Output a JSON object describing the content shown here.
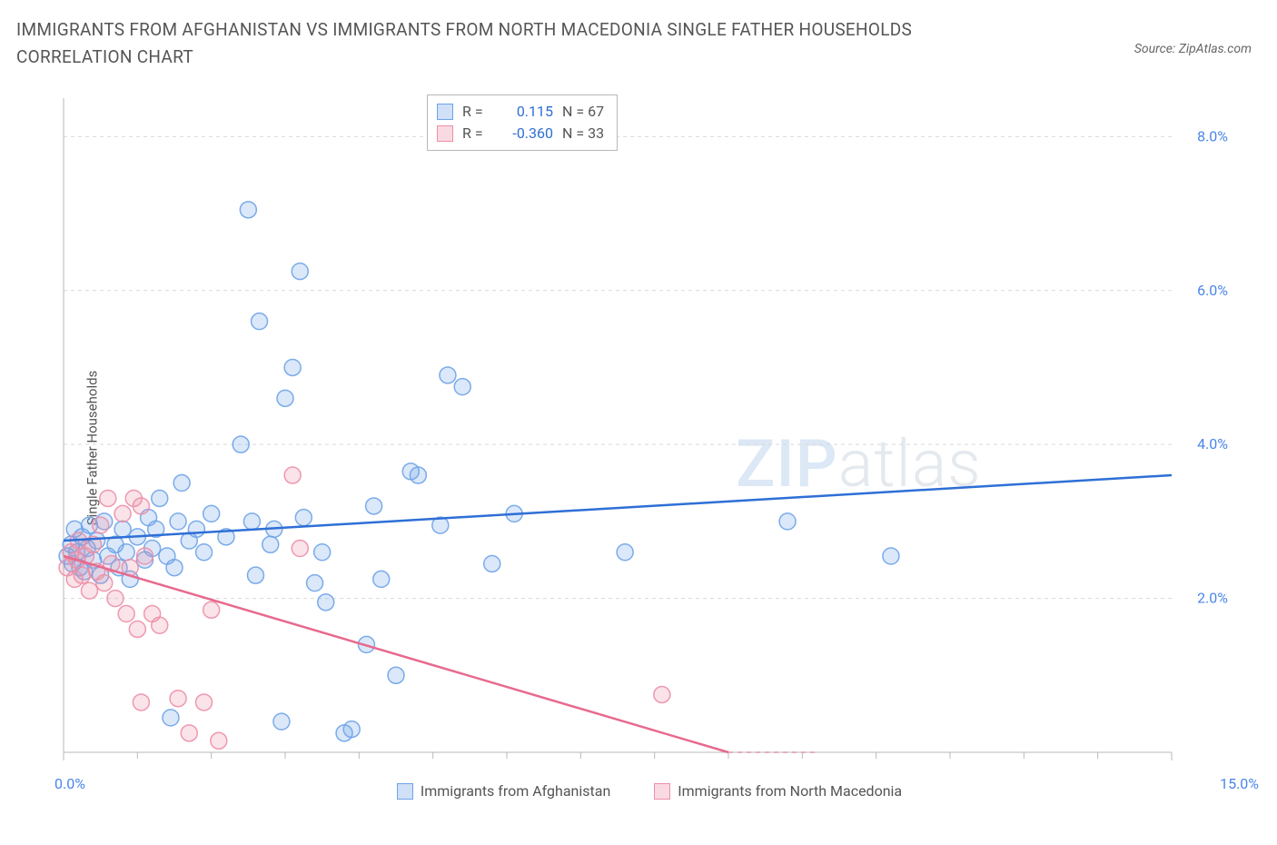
{
  "title": "IMMIGRANTS FROM AFGHANISTAN VS IMMIGRANTS FROM NORTH MACEDONIA SINGLE FATHER HOUSEHOLDS CORRELATION CHART",
  "source": "Source: ZipAtlas.com",
  "y_axis_label": "Single Father Households",
  "watermark_a": "ZIP",
  "watermark_b": "atlas",
  "chart": {
    "type": "scatter",
    "xlim": [
      0,
      15
    ],
    "ylim": [
      0,
      8.5
    ],
    "x_end_ticks": [
      {
        "v": 0.0,
        "label": "0.0%",
        "color": "#4a86e8"
      },
      {
        "v": 15.0,
        "label": "15.0%",
        "color": "#4a86e8"
      }
    ],
    "x_minor_ticks": [
      1,
      2,
      3,
      4,
      5,
      6,
      7,
      8,
      9,
      10,
      11,
      12,
      13,
      14
    ],
    "y_ticks": [
      {
        "v": 2.0,
        "label": "2.0%"
      },
      {
        "v": 4.0,
        "label": "4.0%"
      },
      {
        "v": 6.0,
        "label": "6.0%"
      },
      {
        "v": 8.0,
        "label": "8.0%"
      }
    ],
    "grid_color": "#d9d9d9",
    "axis_color": "#b8b8b8",
    "background_color": "#ffffff",
    "y_tick_color": "#4a86e8",
    "marker_radius": 9,
    "marker_stroke_opacity": 0.9,
    "marker_fill_opacity": 0.25,
    "series": [
      {
        "name": "Immigrants from Afghanistan",
        "color": "#6ea3e8",
        "line_color": "#2e6fd6",
        "r": "0.115",
        "n": "67",
        "trend": {
          "x0": 0,
          "y0": 2.75,
          "x1": 15,
          "y1": 3.6
        },
        "points": [
          [
            0.05,
            2.55
          ],
          [
            0.1,
            2.7
          ],
          [
            0.12,
            2.45
          ],
          [
            0.15,
            2.9
          ],
          [
            0.18,
            2.6
          ],
          [
            0.22,
            2.4
          ],
          [
            0.25,
            2.8
          ],
          [
            0.28,
            2.35
          ],
          [
            0.32,
            2.65
          ],
          [
            0.35,
            2.95
          ],
          [
            0.4,
            2.5
          ],
          [
            0.45,
            2.75
          ],
          [
            0.5,
            2.3
          ],
          [
            0.55,
            3.0
          ],
          [
            0.6,
            2.55
          ],
          [
            0.7,
            2.7
          ],
          [
            0.75,
            2.4
          ],
          [
            0.8,
            2.9
          ],
          [
            0.85,
            2.6
          ],
          [
            0.9,
            2.25
          ],
          [
            1.0,
            2.8
          ],
          [
            1.1,
            2.5
          ],
          [
            1.15,
            3.05
          ],
          [
            1.2,
            2.65
          ],
          [
            1.25,
            2.9
          ],
          [
            1.3,
            3.3
          ],
          [
            1.4,
            2.55
          ],
          [
            1.5,
            2.4
          ],
          [
            1.55,
            3.0
          ],
          [
            1.6,
            3.5
          ],
          [
            1.7,
            2.75
          ],
          [
            1.8,
            2.9
          ],
          [
            1.9,
            2.6
          ],
          [
            2.0,
            3.1
          ],
          [
            2.2,
            2.8
          ],
          [
            2.4,
            4.0
          ],
          [
            2.5,
            7.05
          ],
          [
            2.55,
            3.0
          ],
          [
            2.6,
            2.3
          ],
          [
            2.65,
            5.6
          ],
          [
            2.8,
            2.7
          ],
          [
            2.85,
            2.9
          ],
          [
            2.95,
            0.4
          ],
          [
            3.0,
            4.6
          ],
          [
            3.1,
            5.0
          ],
          [
            3.2,
            6.25
          ],
          [
            3.25,
            3.05
          ],
          [
            3.4,
            2.2
          ],
          [
            3.5,
            2.6
          ],
          [
            3.55,
            1.95
          ],
          [
            3.8,
            0.25
          ],
          [
            3.9,
            0.3
          ],
          [
            4.1,
            1.4
          ],
          [
            4.2,
            3.2
          ],
          [
            4.3,
            2.25
          ],
          [
            4.5,
            1.0
          ],
          [
            4.7,
            3.65
          ],
          [
            4.8,
            3.6
          ],
          [
            5.1,
            2.95
          ],
          [
            5.2,
            4.9
          ],
          [
            5.4,
            4.75
          ],
          [
            5.8,
            2.45
          ],
          [
            6.1,
            3.1
          ],
          [
            7.6,
            2.6
          ],
          [
            9.8,
            3.0
          ],
          [
            11.2,
            2.55
          ],
          [
            1.45,
            0.45
          ]
        ]
      },
      {
        "name": "Immigrants from North Macedonia",
        "color": "#ec8fa7",
        "line_color": "#e76a8e",
        "r": "-0.360",
        "n": "33",
        "trend": {
          "x0": 0,
          "y0": 2.55,
          "x1": 9.0,
          "y1": 0.0
        },
        "trend_dashed_ext": {
          "x0": 9.0,
          "y0": 0.0,
          "x1": 10.2,
          "y1": -0.3
        },
        "points": [
          [
            0.05,
            2.4
          ],
          [
            0.1,
            2.6
          ],
          [
            0.15,
            2.25
          ],
          [
            0.18,
            2.5
          ],
          [
            0.2,
            2.75
          ],
          [
            0.25,
            2.3
          ],
          [
            0.3,
            2.55
          ],
          [
            0.35,
            2.1
          ],
          [
            0.4,
            2.7
          ],
          [
            0.45,
            2.35
          ],
          [
            0.5,
            2.95
          ],
          [
            0.55,
            2.2
          ],
          [
            0.6,
            3.3
          ],
          [
            0.65,
            2.45
          ],
          [
            0.7,
            2.0
          ],
          [
            0.8,
            3.1
          ],
          [
            0.85,
            1.8
          ],
          [
            0.9,
            2.4
          ],
          [
            0.95,
            3.3
          ],
          [
            1.0,
            1.6
          ],
          [
            1.1,
            2.55
          ],
          [
            1.05,
            3.2
          ],
          [
            1.2,
            1.8
          ],
          [
            1.3,
            1.65
          ],
          [
            1.05,
            0.65
          ],
          [
            1.55,
            0.7
          ],
          [
            1.7,
            0.25
          ],
          [
            1.9,
            0.65
          ],
          [
            2.0,
            1.85
          ],
          [
            2.1,
            0.15
          ],
          [
            3.2,
            2.65
          ],
          [
            3.1,
            3.6
          ],
          [
            8.1,
            0.75
          ]
        ]
      }
    ]
  },
  "bottom_legend": [
    {
      "label": "Immigrants from Afghanistan",
      "color": "#6ea3e8"
    },
    {
      "label": "Immigrants from North Macedonia",
      "color": "#ec8fa7"
    }
  ]
}
